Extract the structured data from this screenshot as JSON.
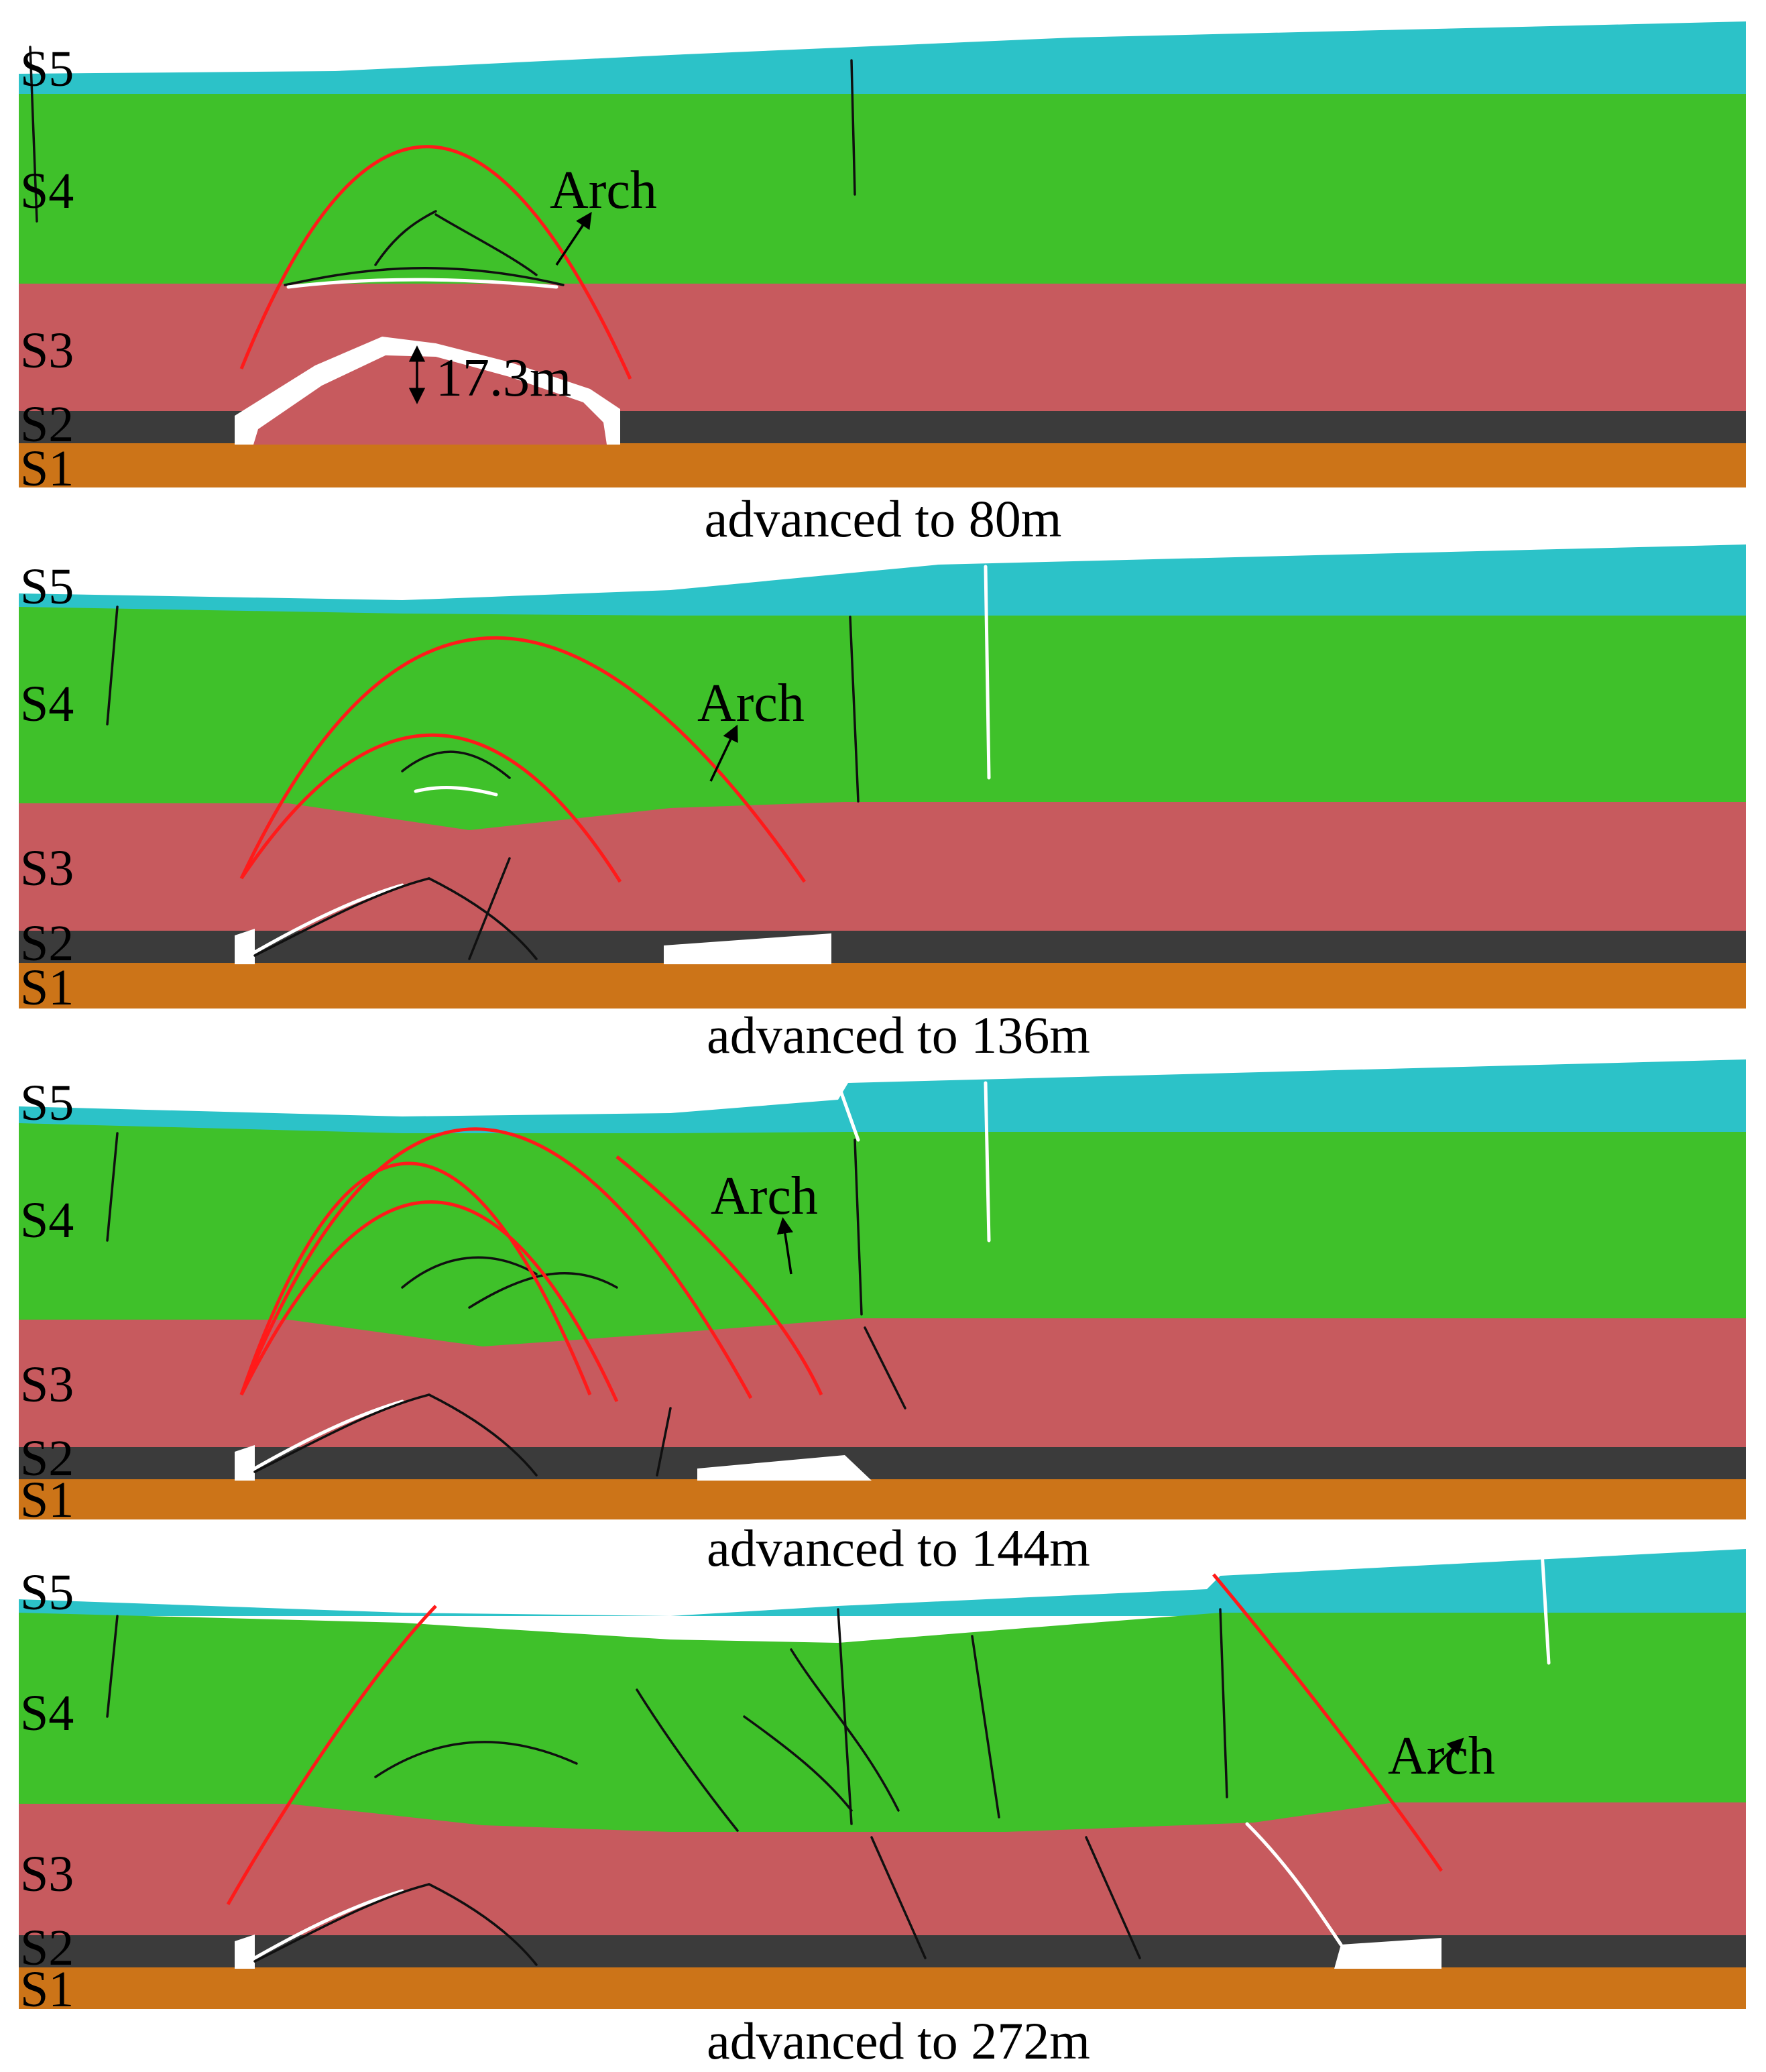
{
  "colors": {
    "S5": "#2cc2c8",
    "S4": "#3fc12a",
    "S3": "#c75a5e",
    "S2": "#3b3b3b",
    "S1": "#cc7418",
    "arch_line": "#ff1a1a",
    "fracture": "#101010",
    "void": "#ffffff"
  },
  "layer_labels": [
    "S5",
    "S4",
    "S3",
    "S2",
    "S1"
  ],
  "panels": [
    {
      "caption": "advanced to 80m",
      "arch_label": "Arch",
      "dimension_label": "17.3m"
    },
    {
      "caption": "advanced to 136m",
      "arch_label": "Arch"
    },
    {
      "caption": "advanced to 144m",
      "arch_label": "Arch"
    },
    {
      "caption": "advanced to 272m",
      "arch_label": "Arch"
    }
  ]
}
